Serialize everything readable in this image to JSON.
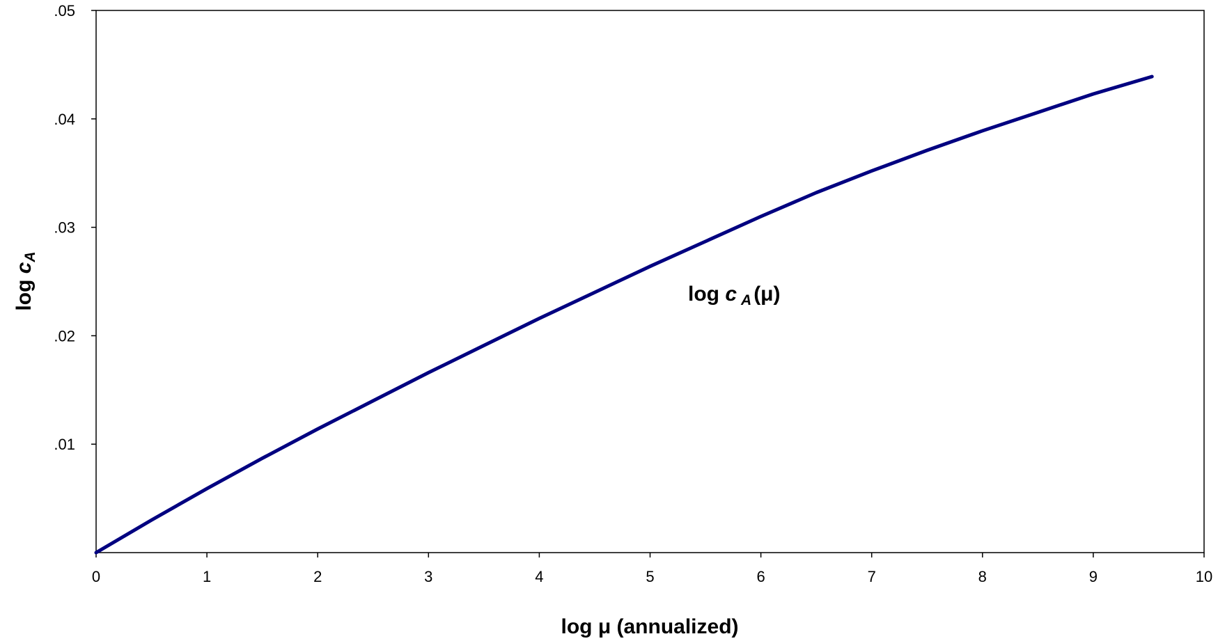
{
  "chart_data": {
    "type": "line",
    "xlabel": {
      "prefix": "log ",
      "symbol": "μ",
      "suffix": " (annualized)"
    },
    "ylabel": {
      "prefix": "log ",
      "var": "c",
      "sub": "A"
    },
    "annotation": {
      "prefix": "log ",
      "var": "c",
      "sub": "A",
      "arg": "(μ)"
    },
    "xlim": [
      0,
      10
    ],
    "ylim": [
      0,
      0.05
    ],
    "x_ticks": [
      0,
      1,
      2,
      3,
      4,
      5,
      6,
      7,
      8,
      9,
      10
    ],
    "x_tick_labels": [
      "0",
      "1",
      "2",
      "3",
      "4",
      "5",
      "6",
      "7",
      "8",
      "9",
      "10"
    ],
    "y_ticks": [
      0.01,
      0.02,
      0.03,
      0.04,
      0.05
    ],
    "y_tick_labels": [
      ".01",
      ".02",
      ".03",
      ".04",
      ".05"
    ],
    "grid": false,
    "line_color": "#000080",
    "series": [
      {
        "x": [
          0,
          0.5,
          1,
          1.5,
          2,
          2.5,
          3,
          3.5,
          4,
          4.5,
          5,
          5.5,
          6,
          6.5,
          7,
          7.5,
          8,
          8.5,
          9,
          9.53
        ],
        "y": [
          0,
          0.003,
          0.0059,
          0.0087,
          0.0114,
          0.014,
          0.0166,
          0.0191,
          0.0216,
          0.024,
          0.0264,
          0.0287,
          0.031,
          0.0332,
          0.0352,
          0.0371,
          0.0389,
          0.0406,
          0.0423,
          0.0439
        ]
      }
    ]
  }
}
